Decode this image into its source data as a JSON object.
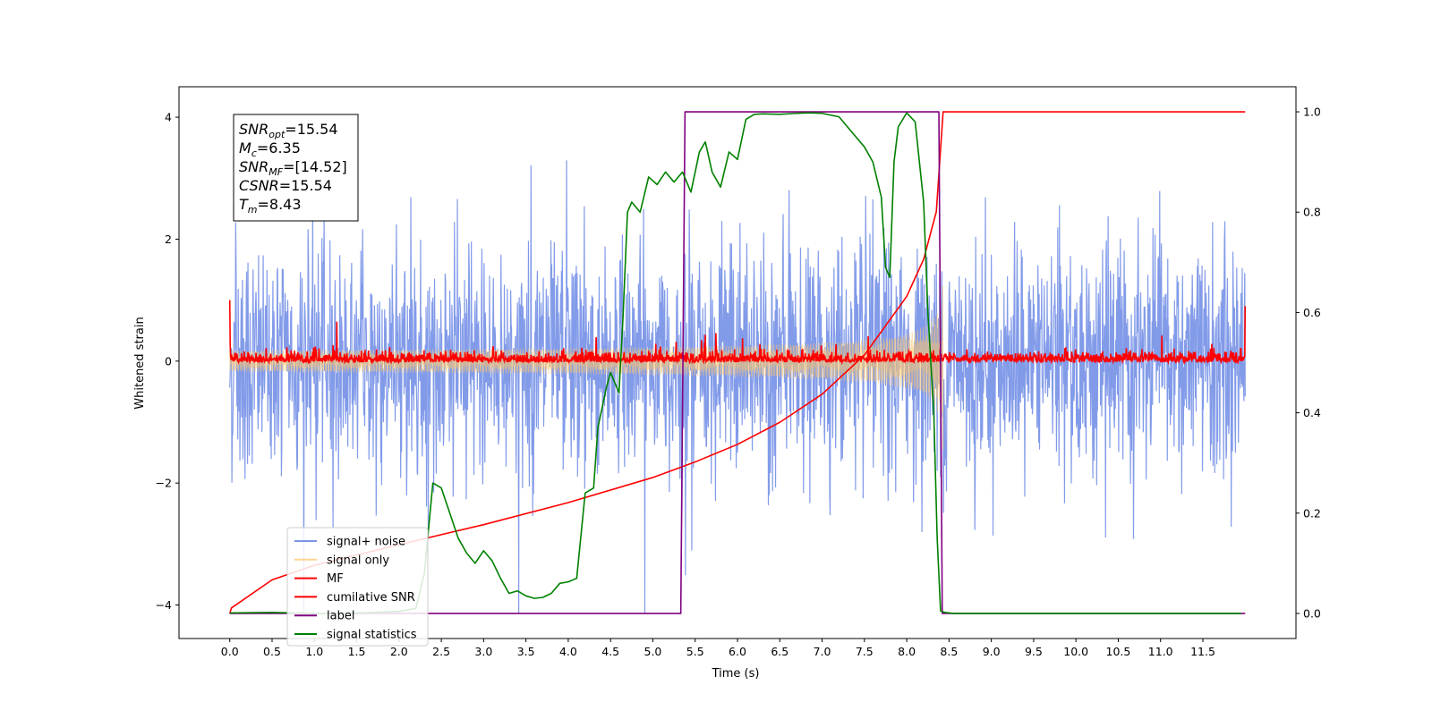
{
  "chart_data": {
    "type": "line",
    "title": "",
    "xlabel": "Time (s)",
    "ylabel": "Whitened strain",
    "y2label": "",
    "xlim": [
      -0.6,
      12.6
    ],
    "ylim": [
      -4.55,
      4.5
    ],
    "y2lim": [
      -0.05,
      1.05
    ],
    "xticks": [
      0.0,
      0.5,
      1.0,
      1.5,
      2.0,
      2.5,
      3.0,
      3.5,
      4.0,
      4.5,
      5.0,
      5.5,
      6.0,
      6.5,
      7.0,
      7.5,
      8.0,
      8.5,
      9.0,
      9.5,
      10.0,
      10.5,
      11.0,
      11.5
    ],
    "xtick_labels": [
      "0.0",
      "0.5",
      "1.0",
      "1.5",
      "2.0",
      "2.5",
      "3.0",
      "3.5",
      "4.0",
      "4.5",
      "5.0",
      "5.5",
      "6.0",
      "6.5",
      "7.0",
      "7.5",
      "8.0",
      "8.5",
      "9.0",
      "9.5",
      "10.0",
      "10.5",
      "11.0",
      "11.5"
    ],
    "yticks": [
      -4,
      -2,
      0,
      2,
      4
    ],
    "ytick_labels": [
      "−4",
      "−2",
      "0",
      "2",
      "4"
    ],
    "y2ticks": [
      0.0,
      0.2,
      0.4,
      0.6,
      0.8,
      1.0
    ],
    "y2tick_labels": [
      "0.0",
      "0.2",
      "0.4",
      "0.6",
      "0.8",
      "1.0"
    ],
    "grid": false,
    "legend_position": "lower-left",
    "annotation": {
      "lines": [
        {
          "base": "SNR",
          "sub": "opt",
          "rest": "=15.54"
        },
        {
          "base": "M",
          "sub": "c",
          "rest": "=6.35"
        },
        {
          "base": "SNR",
          "sub": "MF",
          "rest": "=[14.52]"
        },
        {
          "base": "CSNR",
          "sub": "",
          "rest": "=15.54"
        },
        {
          "base": "T",
          "sub": "m",
          "rest": "=8.43"
        }
      ]
    },
    "series": [
      {
        "name": "signal+ noise",
        "axis": "left",
        "color": "#7b96e8",
        "kind": "noise-band",
        "t_start": 0.0,
        "t_end": 12.0,
        "envelope_typical": 2.0,
        "peak_max": 4.0,
        "peak_min": -4.13
      },
      {
        "name": "signal only",
        "axis": "left",
        "color": "#fdc76b",
        "kind": "chirp",
        "t_start": 0.0,
        "t_end": 8.43,
        "amplitude_start": 0.05,
        "amplitude_end": 1.45
      },
      {
        "name": "MF",
        "axis": "left",
        "color": "#ff0000",
        "kind": "noise-band",
        "t_start": 0.0,
        "t_end": 12.0,
        "envelope_typical": 0.08,
        "start_value": 1.0,
        "end_value": 0.9
      },
      {
        "name": "cumilative SNR",
        "axis": "right",
        "color": "#ff0000",
        "x": [
          0.0,
          0.02,
          0.5,
          1.0,
          2.0,
          3.0,
          4.0,
          5.0,
          5.5,
          6.0,
          6.5,
          7.0,
          7.5,
          8.0,
          8.2,
          8.35,
          8.43,
          8.45,
          12.0
        ],
        "y": [
          0.0,
          0.011,
          0.067,
          0.096,
          0.137,
          0.177,
          0.221,
          0.271,
          0.302,
          0.337,
          0.381,
          0.437,
          0.515,
          0.632,
          0.706,
          0.801,
          1.0,
          1.0,
          1.0
        ]
      },
      {
        "name": "label",
        "axis": "right",
        "color": "#800080",
        "x": [
          0.0,
          5.33,
          5.38,
          8.38,
          8.42,
          12.0
        ],
        "y": [
          0.0,
          0.0,
          1.0,
          1.0,
          0.0,
          0.0
        ]
      },
      {
        "name": "signal statistics",
        "axis": "right",
        "color": "#008000",
        "x": [
          0.0,
          0.5,
          1.0,
          1.5,
          2.0,
          2.2,
          2.3,
          2.4,
          2.5,
          2.6,
          2.7,
          2.8,
          2.9,
          3.0,
          3.1,
          3.2,
          3.3,
          3.4,
          3.5,
          3.6,
          3.7,
          3.8,
          3.9,
          4.0,
          4.1,
          4.2,
          4.3,
          4.35,
          4.45,
          4.5,
          4.55,
          4.6,
          4.65,
          4.7,
          4.75,
          4.85,
          4.95,
          5.05,
          5.15,
          5.25,
          5.35,
          5.45,
          5.55,
          5.62,
          5.7,
          5.8,
          5.9,
          6.0,
          6.1,
          6.2,
          6.3,
          6.5,
          6.7,
          6.85,
          7.0,
          7.2,
          7.4,
          7.5,
          7.6,
          7.7,
          7.75,
          7.8,
          7.85,
          7.9,
          8.0,
          8.1,
          8.2,
          8.25,
          8.32,
          8.36,
          8.4,
          8.45,
          8.55,
          9.0,
          10.0,
          11.0,
          11.95
        ],
        "y": [
          0.001,
          0.002,
          0.0,
          0.001,
          0.004,
          0.01,
          0.08,
          0.26,
          0.25,
          0.2,
          0.15,
          0.12,
          0.1,
          0.125,
          0.105,
          0.07,
          0.04,
          0.045,
          0.035,
          0.03,
          0.032,
          0.04,
          0.06,
          0.063,
          0.07,
          0.24,
          0.25,
          0.37,
          0.45,
          0.48,
          0.46,
          0.44,
          0.6,
          0.8,
          0.82,
          0.8,
          0.87,
          0.855,
          0.88,
          0.86,
          0.88,
          0.84,
          0.92,
          0.94,
          0.88,
          0.85,
          0.92,
          0.905,
          0.985,
          0.995,
          0.996,
          0.995,
          0.997,
          0.998,
          0.997,
          0.99,
          0.95,
          0.93,
          0.9,
          0.83,
          0.69,
          0.67,
          0.9,
          0.97,
          0.998,
          0.98,
          0.82,
          0.6,
          0.4,
          0.15,
          0.005,
          0.002,
          0.0,
          0.0,
          0.0,
          0.0,
          0.0
        ]
      }
    ]
  }
}
